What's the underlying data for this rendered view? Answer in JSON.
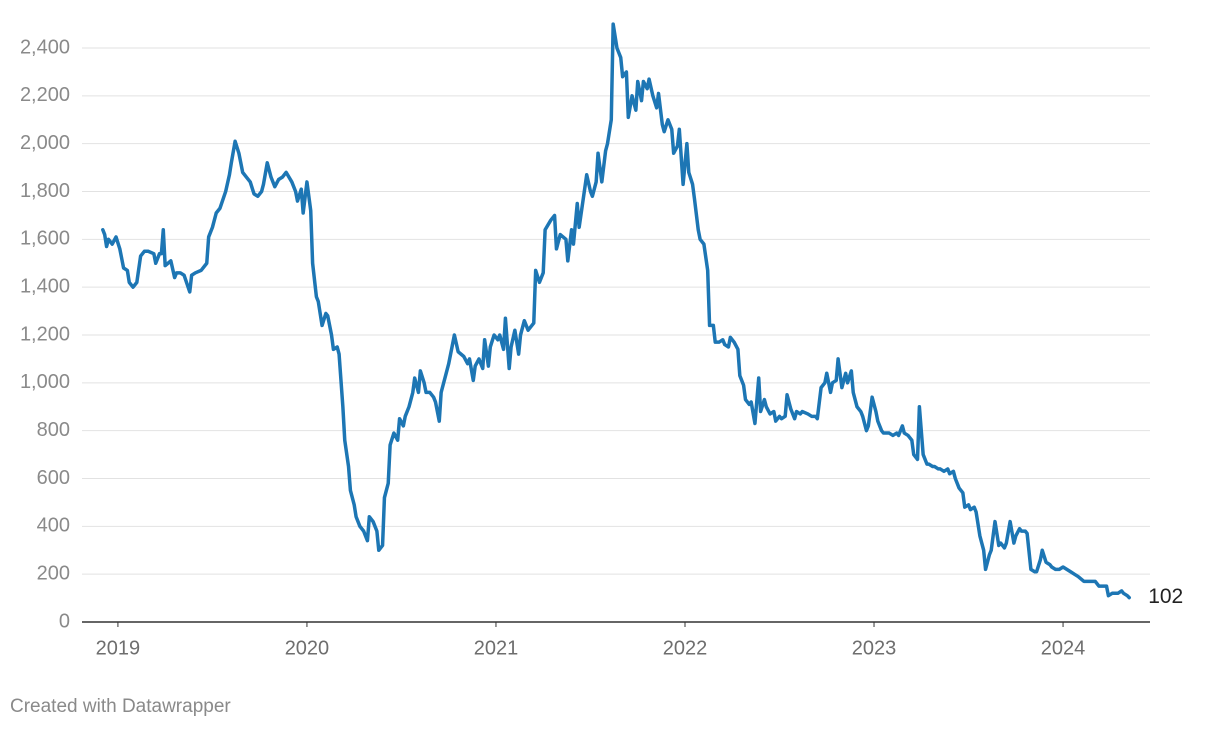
{
  "chart_data": {
    "type": "line",
    "credit": "Created with Datawrapper",
    "x": [
      2018.92,
      2018.93,
      2018.94,
      2018.95,
      2018.97,
      2018.99,
      2019.01,
      2019.03,
      2019.05,
      2019.06,
      2019.08,
      2019.1,
      2019.12,
      2019.14,
      2019.16,
      2019.19,
      2019.2,
      2019.22,
      2019.23,
      2019.24,
      2019.25,
      2019.28,
      2019.3,
      2019.31,
      2019.33,
      2019.35,
      2019.38,
      2019.39,
      2019.41,
      2019.44,
      2019.47,
      2019.48,
      2019.5,
      2019.52,
      2019.54,
      2019.57,
      2019.59,
      2019.6,
      2019.62,
      2019.64,
      2019.66,
      2019.68,
      2019.7,
      2019.72,
      2019.74,
      2019.76,
      2019.77,
      2019.79,
      2019.81,
      2019.83,
      2019.85,
      2019.87,
      2019.89,
      2019.92,
      2019.94,
      2019.95,
      2019.97,
      2019.98,
      2020.0,
      2020.02,
      2020.03,
      2020.05,
      2020.06,
      2020.08,
      2020.1,
      2020.11,
      2020.13,
      2020.14,
      2020.16,
      2020.17,
      2020.19,
      2020.2,
      2020.22,
      2020.23,
      2020.25,
      2020.26,
      2020.28,
      2020.3,
      2020.32,
      2020.33,
      2020.35,
      2020.37,
      2020.38,
      2020.4,
      2020.41,
      2020.43,
      2020.44,
      2020.46,
      2020.48,
      2020.49,
      2020.51,
      2020.52,
      2020.54,
      2020.56,
      2020.57,
      2020.59,
      2020.6,
      2020.62,
      2020.63,
      2020.65,
      2020.67,
      2020.68,
      2020.7,
      2020.71,
      2020.73,
      2020.75,
      2020.76,
      2020.78,
      2020.8,
      2020.83,
      2020.85,
      2020.86,
      2020.88,
      2020.89,
      2020.91,
      2020.93,
      2020.94,
      2020.96,
      2020.97,
      2020.99,
      2021.01,
      2021.02,
      2021.04,
      2021.05,
      2021.07,
      2021.08,
      2021.1,
      2021.12,
      2021.13,
      2021.15,
      2021.17,
      2021.2,
      2021.21,
      2021.23,
      2021.25,
      2021.26,
      2021.29,
      2021.31,
      2021.32,
      2021.34,
      2021.37,
      2021.38,
      2021.4,
      2021.41,
      2021.43,
      2021.44,
      2021.46,
      2021.48,
      2021.5,
      2021.51,
      2021.53,
      2021.54,
      2021.56,
      2021.58,
      2021.59,
      2021.61,
      2021.62,
      2021.64,
      2021.66,
      2021.67,
      2021.69,
      2021.7,
      2021.72,
      2021.74,
      2021.75,
      2021.77,
      2021.78,
      2021.8,
      2021.81,
      2021.83,
      2021.85,
      2021.86,
      2021.88,
      2021.89,
      2021.91,
      2021.93,
      2021.94,
      2021.96,
      2021.97,
      2021.99,
      2022.01,
      2022.02,
      2022.04,
      2022.05,
      2022.07,
      2022.08,
      2022.1,
      2022.12,
      2022.13,
      2022.15,
      2022.16,
      2022.18,
      2022.2,
      2022.21,
      2022.23,
      2022.24,
      2022.26,
      2022.28,
      2022.29,
      2022.31,
      2022.32,
      2022.34,
      2022.35,
      2022.37,
      2022.39,
      2022.4,
      2022.42,
      2022.43,
      2022.45,
      2022.47,
      2022.48,
      2022.5,
      2022.51,
      2022.53,
      2022.54,
      2022.56,
      2022.58,
      2022.59,
      2022.61,
      2022.62,
      2022.65,
      2022.67,
      2022.69,
      2022.7,
      2022.72,
      2022.74,
      2022.75,
      2022.77,
      2022.78,
      2022.8,
      2022.81,
      2022.83,
      2022.85,
      2022.86,
      2022.88,
      2022.89,
      2022.91,
      2022.93,
      2022.94,
      2022.96,
      2022.97,
      2022.99,
      2023.01,
      2023.02,
      2023.04,
      2023.05,
      2023.07,
      2023.08,
      2023.1,
      2023.12,
      2023.13,
      2023.15,
      2023.16,
      2023.18,
      2023.2,
      2023.21,
      2023.23,
      2023.24,
      2023.26,
      2023.28,
      2023.29,
      2023.31,
      2023.32,
      2023.34,
      2023.35,
      2023.37,
      2023.39,
      2023.4,
      2023.42,
      2023.43,
      2023.45,
      2023.47,
      2023.48,
      2023.5,
      2023.51,
      2023.53,
      2023.54,
      2023.56,
      2023.58,
      2023.59,
      2023.61,
      2023.62,
      2023.64,
      2023.66,
      2023.67,
      2023.69,
      2023.7,
      2023.72,
      2023.74,
      2023.75,
      2023.77,
      2023.78,
      2023.8,
      2023.81,
      2023.83,
      2023.85,
      2023.86,
      2023.88,
      2023.89,
      2023.91,
      2023.93,
      2023.94,
      2023.96,
      2023.98,
      2024.0,
      2024.02,
      2024.04,
      2024.06,
      2024.08,
      2024.11,
      2024.13,
      2024.15,
      2024.17,
      2024.19,
      2024.21,
      2024.23,
      2024.24,
      2024.26,
      2024.29,
      2024.31,
      2024.32,
      2024.34,
      2024.35
    ],
    "series": [
      {
        "color": "#1d76b4",
        "values": [
          1640,
          1620,
          1570,
          1600,
          1580,
          1610,
          1560,
          1480,
          1470,
          1420,
          1400,
          1420,
          1530,
          1550,
          1550,
          1540,
          1500,
          1540,
          1540,
          1640,
          1490,
          1510,
          1440,
          1460,
          1460,
          1450,
          1380,
          1450,
          1460,
          1470,
          1500,
          1610,
          1650,
          1710,
          1730,
          1800,
          1870,
          1920,
          2010,
          1960,
          1880,
          1860,
          1840,
          1790,
          1780,
          1800,
          1830,
          1920,
          1860,
          1820,
          1850,
          1860,
          1880,
          1840,
          1800,
          1760,
          1810,
          1710,
          1840,
          1720,
          1500,
          1360,
          1340,
          1240,
          1290,
          1280,
          1200,
          1140,
          1150,
          1120,
          900,
          760,
          650,
          550,
          490,
          440,
          400,
          380,
          340,
          440,
          420,
          380,
          300,
          320,
          520,
          580,
          740,
          790,
          760,
          850,
          820,
          860,
          900,
          960,
          1020,
          960,
          1050,
          1000,
          960,
          960,
          940,
          920,
          840,
          960,
          1020,
          1080,
          1120,
          1200,
          1130,
          1110,
          1080,
          1100,
          1010,
          1070,
          1100,
          1060,
          1180,
          1070,
          1150,
          1200,
          1180,
          1200,
          1140,
          1270,
          1060,
          1150,
          1220,
          1120,
          1200,
          1260,
          1220,
          1250,
          1470,
          1420,
          1460,
          1640,
          1680,
          1700,
          1560,
          1620,
          1600,
          1510,
          1640,
          1580,
          1750,
          1650,
          1760,
          1870,
          1800,
          1780,
          1840,
          1960,
          1840,
          1970,
          2000,
          2100,
          2500,
          2400,
          2360,
          2280,
          2300,
          2110,
          2200,
          2140,
          2260,
          2180,
          2260,
          2230,
          2270,
          2200,
          2150,
          2210,
          2080,
          2050,
          2100,
          2060,
          1960,
          1990,
          2060,
          1830,
          2000,
          1880,
          1830,
          1770,
          1640,
          1600,
          1580,
          1470,
          1240,
          1240,
          1170,
          1170,
          1180,
          1160,
          1150,
          1190,
          1170,
          1140,
          1030,
          990,
          930,
          910,
          920,
          830,
          1020,
          880,
          930,
          900,
          870,
          880,
          840,
          860,
          850,
          860,
          950,
          890,
          850,
          880,
          870,
          880,
          870,
          860,
          860,
          850,
          980,
          1000,
          1040,
          960,
          1000,
          1010,
          1100,
          980,
          1040,
          1000,
          1050,
          960,
          900,
          880,
          860,
          800,
          820,
          940,
          880,
          840,
          800,
          790,
          790,
          790,
          780,
          790,
          780,
          820,
          790,
          780,
          760,
          700,
          680,
          900,
          700,
          660,
          660,
          650,
          650,
          640,
          640,
          630,
          640,
          620,
          630,
          600,
          560,
          540,
          480,
          490,
          470,
          480,
          460,
          360,
          300,
          220,
          280,
          300,
          420,
          320,
          330,
          310,
          330,
          420,
          330,
          360,
          390,
          380,
          380,
          370,
          220,
          210,
          210,
          260,
          300,
          250,
          240,
          230,
          220,
          220,
          230,
          220,
          210,
          200,
          190,
          170,
          170,
          170,
          170,
          150,
          150,
          150,
          110,
          120,
          120,
          130,
          120,
          110,
          102
        ]
      }
    ],
    "xlim": [
      2018.81,
      2024.46
    ],
    "xticks": [
      2019,
      2020,
      2021,
      2022,
      2023,
      2024
    ],
    "ylim": [
      0,
      2400
    ],
    "yticks": [
      0,
      200,
      400,
      600,
      800,
      {
        "value": 1000,
        "label": "1,000"
      },
      {
        "value": 1200,
        "label": "1,200"
      },
      {
        "value": 1400,
        "label": "1,400"
      },
      {
        "value": 1600,
        "label": "1,600"
      },
      {
        "value": 1800,
        "label": "1,800"
      },
      {
        "value": 2000,
        "label": "2,000"
      },
      {
        "value": 2200,
        "label": "2,200"
      },
      {
        "value": 2400,
        "label": "2,400"
      }
    ],
    "grid": true
  }
}
